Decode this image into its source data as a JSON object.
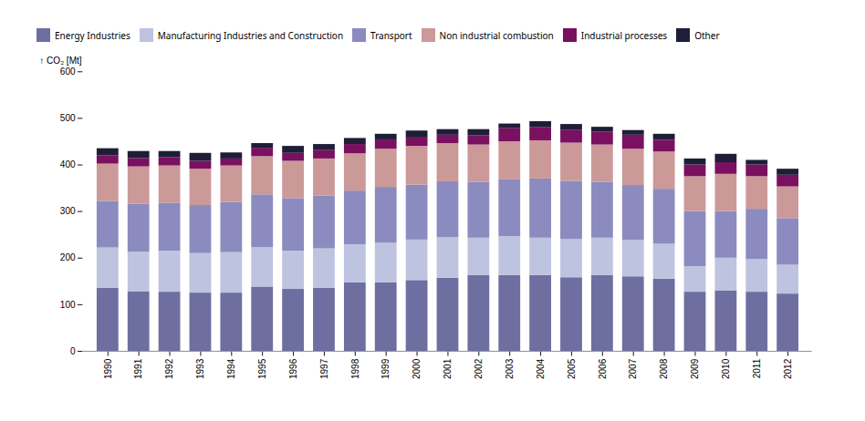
{
  "chart_data": {
    "type": "bar",
    "stacked": true,
    "categories": [
      "1990",
      "1991",
      "1992",
      "1993",
      "1994",
      "1995",
      "1996",
      "1997",
      "1998",
      "1999",
      "2000",
      "2001",
      "2002",
      "2003",
      "2004",
      "2005",
      "2006",
      "2007",
      "2008",
      "2009",
      "2010",
      "2011",
      "2012"
    ],
    "series": [
      {
        "name": "Energy Industries",
        "color": "#6e6fa0",
        "values": [
          135,
          128,
          127,
          125,
          125,
          138,
          133,
          135,
          147,
          147,
          152,
          157,
          163,
          163,
          163,
          158,
          163,
          160,
          155,
          127,
          130,
          127,
          123
        ]
      },
      {
        "name": "Manufacturing Industries and Construction",
        "color": "#bec3e0",
        "values": [
          87,
          85,
          88,
          85,
          87,
          85,
          82,
          85,
          82,
          85,
          87,
          87,
          80,
          83,
          80,
          82,
          80,
          78,
          75,
          55,
          70,
          70,
          62
        ]
      },
      {
        "name": "Transport",
        "color": "#8b8bbf",
        "values": [
          100,
          103,
          103,
          103,
          108,
          113,
          113,
          113,
          115,
          120,
          118,
          120,
          120,
          122,
          127,
          125,
          120,
          118,
          118,
          118,
          100,
          108,
          100
        ]
      },
      {
        "name": "Non industrial combustion",
        "color": "#cc9999",
        "values": [
          80,
          80,
          80,
          78,
          78,
          82,
          80,
          80,
          80,
          82,
          83,
          82,
          80,
          82,
          82,
          82,
          80,
          78,
          80,
          75,
          80,
          70,
          68
        ]
      },
      {
        "name": "Industrial processes",
        "color": "#7a1060",
        "values": [
          18,
          18,
          18,
          17,
          15,
          18,
          17,
          18,
          20,
          20,
          18,
          18,
          20,
          28,
          28,
          28,
          28,
          30,
          25,
          25,
          25,
          25,
          25
        ]
      },
      {
        "name": "Other",
        "color": "#1e1e38",
        "values": [
          15,
          15,
          13,
          17,
          13,
          10,
          15,
          13,
          13,
          12,
          15,
          12,
          13,
          10,
          13,
          12,
          10,
          10,
          13,
          13,
          18,
          10,
          13
        ]
      }
    ],
    "ylabel": "CO₂ [Mt]",
    "ylim": [
      0,
      600
    ],
    "yticks": [
      0,
      100,
      200,
      300,
      400,
      500,
      600
    ],
    "grid": false,
    "legend": "top"
  }
}
